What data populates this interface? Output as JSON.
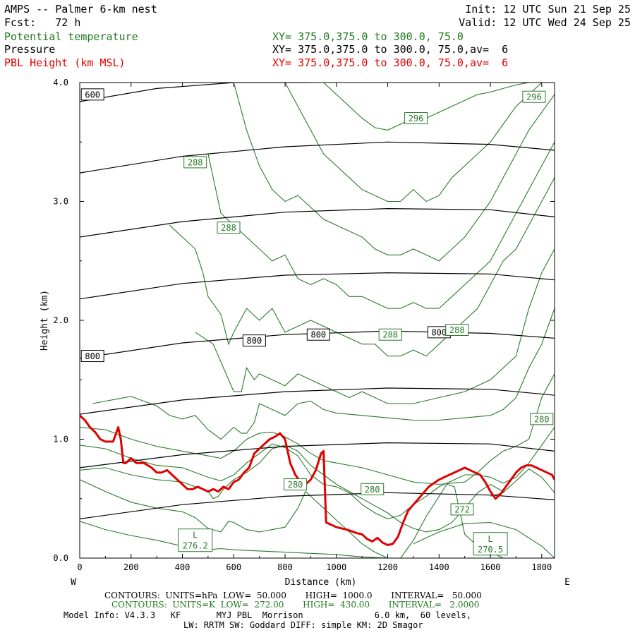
{
  "header": {
    "title": "AMPS -- Palmer 6-km nest",
    "fcst": "Fcst:   72 h",
    "init": "Init: 12 UTC Sun 21 Sep 25",
    "valid": "Valid: 12 UTC Wed 24 Sep 25",
    "var1": "Potential temperature",
    "var2": "Pressure",
    "var3": "PBL Height (km MSL)",
    "xy1": "XY= 375.0,375.0 to 300.0, 75.0",
    "xy2": "XY= 375.0,375.0 to 300.0, 75.0,av=  6",
    "xy3": "XY= 375.0,375.0 to 300.0, 75.0,av=  6"
  },
  "colors": {
    "theta": "#2a7a2a",
    "pressure": "#000000",
    "pbl": "#e00000"
  },
  "chart_data": {
    "type": "line",
    "xlabel": "Distance (km)",
    "ylabel": "Height (km)",
    "xlim": [
      0,
      1850
    ],
    "ylim": [
      0,
      4.0
    ],
    "xticks": [
      "0",
      "200",
      "400",
      "600",
      "800",
      "1000",
      "1200",
      "1400",
      "1600",
      "1800"
    ],
    "yticks": [
      "0.0",
      "1.0",
      "2.0",
      "3.0",
      "4.0"
    ],
    "west_label": "W",
    "east_label": "E",
    "pressure_contours": [
      {
        "x": [
          0,
          400,
          800,
          1200,
          1600,
          1850
        ],
        "y": [
          0.33,
          0.45,
          0.52,
          0.55,
          0.53,
          0.49
        ]
      },
      {
        "x": [
          0,
          400,
          800,
          1200,
          1600,
          1850
        ],
        "y": [
          0.76,
          0.87,
          0.94,
          0.97,
          0.96,
          0.9
        ]
      },
      {
        "x": [
          0,
          400,
          800,
          1200,
          1600,
          1850
        ],
        "y": [
          1.21,
          1.33,
          1.4,
          1.43,
          1.42,
          1.37
        ]
      },
      {
        "x": [
          0,
          400,
          800,
          1200,
          1600,
          1850
        ],
        "y": [
          1.68,
          1.81,
          1.88,
          1.91,
          1.89,
          1.85
        ]
      },
      {
        "x": [
          0,
          400,
          800,
          1200,
          1600,
          1850
        ],
        "y": [
          2.18,
          2.31,
          2.38,
          2.4,
          2.39,
          2.34
        ]
      },
      {
        "x": [
          0,
          400,
          800,
          1200,
          1600,
          1850
        ],
        "y": [
          2.7,
          2.83,
          2.91,
          2.94,
          2.93,
          2.87
        ]
      },
      {
        "x": [
          0,
          400,
          800,
          1200,
          1600,
          1850
        ],
        "y": [
          3.24,
          3.38,
          3.46,
          3.5,
          3.48,
          3.43
        ]
      },
      {
        "x": [
          0,
          300,
          600,
          900
        ],
        "y": [
          3.84,
          3.95,
          4.0,
          4.0
        ]
      }
    ],
    "theta_contours": [
      {
        "x": [
          0,
          100,
          200,
          300,
          400,
          500,
          550,
          600,
          700,
          800,
          900,
          1000,
          1100,
          1200
        ],
        "y": [
          0.31,
          0.24,
          0.19,
          0.15,
          0.1,
          0.07,
          0.08,
          0.07,
          0.06,
          0.05,
          0.04,
          0.03,
          0.01,
          0.0
        ]
      },
      {
        "x": [
          1300,
          1400,
          1500,
          1600,
          1700,
          1800,
          1850
        ],
        "y": [
          0.12,
          0.22,
          0.29,
          0.3,
          0.24,
          0.1,
          0.0
        ]
      },
      {
        "x": [
          0,
          100,
          200,
          300,
          400,
          450,
          500,
          550,
          580,
          600,
          650,
          700,
          800,
          850,
          880,
          900,
          950,
          1000,
          1050,
          1100,
          1150,
          1200
        ],
        "y": [
          0.66,
          0.56,
          0.47,
          0.42,
          0.39,
          0.34,
          0.25,
          0.22,
          0.31,
          0.3,
          0.24,
          0.22,
          0.26,
          0.42,
          0.56,
          0.52,
          0.42,
          0.32,
          0.22,
          0.12,
          0.05,
          0.0
        ]
      },
      {
        "x": [
          1250,
          1300,
          1350,
          1400,
          1430,
          1460,
          1480,
          1500,
          1550,
          1600,
          1650,
          1700
        ],
        "y": [
          0.0,
          0.15,
          0.35,
          0.52,
          0.62,
          0.6,
          0.4,
          0.2,
          0.1,
          0.05,
          0.0,
          0.0
        ]
      },
      {
        "x": [
          1600,
          1650,
          1700,
          1750,
          1800,
          1850
        ],
        "y": [
          0.52,
          0.55,
          0.65,
          0.75,
          0.68,
          0.55
        ]
      },
      {
        "x": [
          0,
          100,
          200,
          300,
          400,
          500,
          520,
          540,
          560,
          600,
          650,
          700,
          750,
          800,
          850,
          900,
          950,
          1000,
          1100,
          1200,
          1250,
          1300,
          1350,
          1400,
          1450,
          1500,
          1550,
          1600,
          1650
        ],
        "y": [
          0.74,
          0.76,
          0.7,
          0.66,
          0.64,
          0.56,
          0.5,
          0.52,
          0.58,
          0.66,
          0.72,
          0.8,
          0.92,
          0.95,
          0.9,
          0.78,
          0.7,
          0.62,
          0.5,
          0.38,
          0.3,
          0.25,
          0.22,
          0.24,
          0.3,
          0.42,
          0.55,
          0.62,
          0.56
        ]
      },
      {
        "x": [
          0,
          100,
          200,
          300,
          400,
          500,
          550,
          600,
          650,
          700,
          750,
          800,
          850,
          900,
          950,
          1000,
          1050,
          1100,
          1150,
          1200,
          1250,
          1300,
          1350,
          1400,
          1450,
          1500,
          1550,
          1600,
          1650,
          1700,
          1750,
          1800,
          1850
        ],
        "y": [
          0.95,
          0.92,
          0.84,
          0.78,
          0.76,
          0.68,
          0.65,
          0.7,
          0.8,
          0.88,
          0.96,
          0.93,
          0.86,
          0.7,
          0.62,
          0.6,
          0.55,
          0.45,
          0.38,
          0.33,
          0.36,
          0.45,
          0.52,
          0.6,
          0.65,
          0.7,
          0.7,
          0.68,
          0.63,
          0.68,
          0.8,
          0.95,
          1.1
        ]
      },
      {
        "x": [
          0,
          100,
          200,
          300,
          400,
          500,
          550,
          600,
          650,
          700,
          750,
          800,
          850,
          900,
          950,
          1000,
          1100,
          1200,
          1300,
          1400,
          1500,
          1550,
          1600,
          1650,
          1700,
          1750,
          1800,
          1850
        ],
        "y": [
          1.1,
          1.08,
          1.0,
          0.94,
          0.9,
          0.86,
          0.84,
          0.9,
          1.0,
          1.05,
          1.06,
          1.02,
          0.96,
          0.88,
          0.82,
          0.8,
          0.76,
          0.7,
          0.64,
          0.62,
          0.64,
          0.72,
          0.82,
          0.9,
          0.94,
          1.0,
          1.35,
          1.55
        ]
      },
      {
        "x": [
          50,
          150,
          200,
          250,
          300,
          350,
          400,
          450,
          500,
          550,
          600,
          630,
          650,
          680,
          700,
          750,
          800,
          850,
          900,
          950,
          1000,
          1100,
          1200,
          1300,
          1400,
          1500,
          1600,
          1650,
          1700,
          1750,
          1800,
          1850
        ],
        "y": [
          1.3,
          1.34,
          1.36,
          1.32,
          1.28,
          1.2,
          1.17,
          1.2,
          1.08,
          1.0,
          1.1,
          1.05,
          1.05,
          1.14,
          1.3,
          1.25,
          1.2,
          1.3,
          1.32,
          1.25,
          1.22,
          1.2,
          1.18,
          1.16,
          1.16,
          1.18,
          1.2,
          1.25,
          1.35,
          1.6,
          1.8,
          2.1
        ]
      },
      {
        "x": [
          450,
          520,
          560,
          600,
          630,
          650,
          680,
          700,
          750,
          800,
          850,
          900,
          950,
          1000,
          1050,
          1100,
          1200,
          1300,
          1400,
          1500,
          1600,
          1700,
          1750,
          1800,
          1850
        ],
        "y": [
          1.9,
          1.8,
          1.6,
          1.4,
          1.4,
          1.6,
          1.5,
          1.55,
          1.5,
          1.45,
          1.55,
          1.5,
          1.45,
          1.4,
          1.35,
          1.4,
          1.3,
          1.3,
          1.35,
          1.4,
          1.5,
          1.7,
          2.1,
          2.4,
          2.6
        ]
      },
      {
        "x": [
          350,
          450,
          480,
          500,
          550,
          580,
          600,
          650,
          700,
          750,
          800,
          850,
          900,
          950,
          1000,
          1050,
          1100,
          1150,
          1200,
          1250,
          1300,
          1350,
          1400,
          1450,
          1500,
          1550,
          1600,
          1650,
          1700,
          1750,
          1800,
          1850
        ],
        "y": [
          2.8,
          2.6,
          2.4,
          2.2,
          2.05,
          1.8,
          1.9,
          2.1,
          2.0,
          2.1,
          1.9,
          1.95,
          2.0,
          1.95,
          1.9,
          1.85,
          1.8,
          1.8,
          1.7,
          1.7,
          1.75,
          1.7,
          1.8,
          1.9,
          2.0,
          2.1,
          2.3,
          2.5,
          2.6,
          2.8,
          3.0,
          3.2
        ]
      },
      {
        "x": [
          500,
          550,
          600,
          650,
          700,
          750,
          800,
          850,
          900,
          950,
          1000,
          1050,
          1100,
          1150,
          1200,
          1250,
          1300,
          1350,
          1400,
          1450,
          1500,
          1550,
          1600,
          1650,
          1700,
          1750,
          1800,
          1850
        ],
        "y": [
          3.4,
          2.9,
          2.8,
          2.7,
          2.6,
          2.5,
          2.55,
          2.35,
          2.3,
          2.35,
          2.3,
          2.2,
          2.2,
          2.15,
          2.1,
          2.1,
          2.15,
          2.1,
          2.1,
          2.2,
          2.3,
          2.4,
          2.5,
          2.7,
          2.9,
          3.1,
          3.3,
          3.5
        ]
      },
      {
        "x": [
          600,
          650,
          700,
          750,
          800,
          850,
          900,
          950,
          1000,
          1050,
          1100,
          1150,
          1200,
          1250,
          1300,
          1350,
          1400,
          1450,
          1500,
          1550,
          1600,
          1650,
          1700,
          1750,
          1800,
          1850
        ],
        "y": [
          4.0,
          3.6,
          3.3,
          3.1,
          3.0,
          3.05,
          2.95,
          2.85,
          2.8,
          2.75,
          2.7,
          2.6,
          2.55,
          2.55,
          2.6,
          2.55,
          2.5,
          2.6,
          2.7,
          2.85,
          3.0,
          3.2,
          3.4,
          3.6,
          3.75,
          3.9
        ]
      },
      {
        "x": [
          800,
          850,
          900,
          950,
          1000,
          1050,
          1100,
          1150,
          1200,
          1250,
          1300,
          1350,
          1400,
          1450,
          1500,
          1550,
          1600,
          1650,
          1700,
          1750,
          1800,
          1850
        ],
        "y": [
          4.0,
          3.8,
          3.6,
          3.4,
          3.3,
          3.2,
          3.1,
          3.05,
          3.0,
          3.0,
          3.1,
          3.0,
          3.05,
          3.2,
          3.3,
          3.4,
          3.5,
          3.65,
          3.8,
          3.9,
          4.0,
          4.0
        ]
      },
      {
        "x": [
          950,
          1000,
          1050,
          1100,
          1150,
          1200,
          1250,
          1300,
          1350,
          1400,
          1450,
          1500,
          1550,
          1600,
          1650,
          1700,
          1750
        ],
        "y": [
          4.0,
          3.9,
          3.8,
          3.7,
          3.62,
          3.6,
          3.65,
          3.7,
          3.7,
          3.75,
          3.8,
          3.85,
          3.9,
          3.92,
          3.95,
          3.98,
          4.0
        ]
      }
    ],
    "pbl_height": {
      "x": [
        0,
        20,
        40,
        60,
        80,
        100,
        130,
        150,
        160,
        170,
        180,
        190,
        200,
        220,
        250,
        280,
        300,
        320,
        340,
        360,
        380,
        400,
        420,
        440,
        460,
        480,
        500,
        520,
        540,
        560,
        580,
        600,
        620,
        640,
        660,
        680,
        700,
        720,
        740,
        760,
        780,
        800,
        810,
        820,
        840,
        860,
        880,
        900,
        920,
        940,
        950,
        960,
        980,
        1000,
        1040,
        1080,
        1100,
        1120,
        1140,
        1160,
        1180,
        1200,
        1220,
        1240,
        1260,
        1270,
        1280,
        1300,
        1320,
        1340,
        1360,
        1380,
        1400,
        1420,
        1440,
        1460,
        1480,
        1500,
        1520,
        1540,
        1560,
        1580,
        1600,
        1620,
        1640,
        1660,
        1680,
        1700,
        1720,
        1740,
        1760,
        1780,
        1800,
        1820,
        1840,
        1850
      ],
      "y": [
        1.2,
        1.16,
        1.1,
        1.06,
        1.0,
        0.98,
        0.98,
        1.1,
        1.0,
        0.8,
        0.8,
        0.82,
        0.84,
        0.8,
        0.8,
        0.76,
        0.72,
        0.72,
        0.74,
        0.7,
        0.66,
        0.62,
        0.58,
        0.58,
        0.6,
        0.58,
        0.56,
        0.58,
        0.56,
        0.6,
        0.58,
        0.64,
        0.66,
        0.72,
        0.76,
        0.88,
        0.92,
        0.96,
        1.0,
        1.02,
        1.05,
        1.0,
        0.9,
        0.8,
        0.7,
        0.64,
        0.62,
        0.66,
        0.74,
        0.88,
        0.9,
        0.3,
        0.28,
        0.26,
        0.24,
        0.21,
        0.2,
        0.16,
        0.14,
        0.17,
        0.13,
        0.11,
        0.12,
        0.18,
        0.3,
        0.35,
        0.4,
        0.45,
        0.5,
        0.55,
        0.6,
        0.63,
        0.66,
        0.68,
        0.7,
        0.72,
        0.74,
        0.76,
        0.74,
        0.72,
        0.7,
        0.64,
        0.56,
        0.5,
        0.54,
        0.6,
        0.66,
        0.72,
        0.76,
        0.78,
        0.78,
        0.76,
        0.74,
        0.72,
        0.7,
        0.66
      ]
    },
    "pressure_labels": [
      {
        "text": "600",
        "x": 50,
        "y": 3.9
      },
      {
        "text": "800",
        "x": 50,
        "y": 1.7
      },
      {
        "text": "800",
        "x": 680,
        "y": 1.83
      },
      {
        "text": "800",
        "x": 930,
        "y": 1.88
      },
      {
        "text": "800",
        "x": 1400,
        "y": 1.9
      }
    ],
    "theta_labels": [
      {
        "text": "296",
        "x": 1770,
        "y": 3.88
      },
      {
        "text": "296",
        "x": 1310,
        "y": 3.7
      },
      {
        "text": "288",
        "x": 450,
        "y": 3.33
      },
      {
        "text": "288",
        "x": 580,
        "y": 2.78
      },
      {
        "text": "288",
        "x": 1210,
        "y": 1.88
      },
      {
        "text": "288",
        "x": 1470,
        "y": 1.92
      },
      {
        "text": "280",
        "x": 1800,
        "y": 1.17
      },
      {
        "text": "280",
        "x": 840,
        "y": 0.62
      },
      {
        "text": "280",
        "x": 1140,
        "y": 0.58
      },
      {
        "text": "272",
        "x": 1490,
        "y": 0.41
      }
    ],
    "low_labels": [
      {
        "L": "L",
        "value": "276.2",
        "x": 450,
        "y": 0.15
      },
      {
        "L": "L",
        "value": "270.5",
        "x": 1600,
        "y": 0.12
      }
    ]
  },
  "footer": {
    "line1": "CONTOURS:  UNITS=hPa  LOW=  50.000       HIGH=  1000.0       INTERVAL=   50.000",
    "line2": "CONTOURS:  UNITS=K  LOW=  272.00       HIGH=  430.00       INTERVAL=   2.0000",
    "line3": "Model Info: V4.3.3   KF       MYJ PBL  Morrison              6.0 km,  60 levels,",
    "line4": "LW: RRTM SW: Goddard DIFF: simple KM: 2D Smagor"
  }
}
